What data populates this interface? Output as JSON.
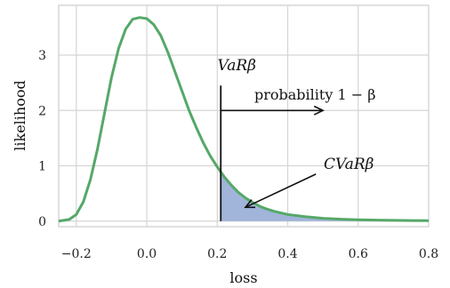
{
  "chart_data": {
    "type": "line",
    "title": "",
    "xlabel": "loss",
    "ylabel": "likelihood",
    "xlim": [
      -0.25,
      0.8
    ],
    "ylim": [
      -0.1,
      3.9
    ],
    "grid": true,
    "legend": "none",
    "x_ticks": [
      -0.2,
      0.0,
      0.2,
      0.4,
      0.6,
      0.8
    ],
    "x_tick_labels": [
      "−0.2",
      "0.0",
      "0.2",
      "0.4",
      "0.6",
      "0.8"
    ],
    "y_ticks": [
      0,
      1,
      2,
      3
    ],
    "y_tick_labels": [
      "0",
      "1",
      "2",
      "3"
    ],
    "series": [
      {
        "line_color": "#55a868",
        "x": [
          -0.25,
          -0.22,
          -0.2,
          -0.18,
          -0.16,
          -0.14,
          -0.12,
          -0.1,
          -0.08,
          -0.06,
          -0.04,
          -0.02,
          0.0,
          0.02,
          0.04,
          0.06,
          0.08,
          0.1,
          0.12,
          0.14,
          0.16,
          0.18,
          0.2,
          0.22,
          0.24,
          0.26,
          0.28,
          0.3,
          0.32,
          0.34,
          0.36,
          0.38,
          0.4,
          0.45,
          0.5,
          0.55,
          0.6,
          0.65,
          0.7,
          0.75,
          0.8
        ],
        "y": [
          0.0,
          0.03,
          0.12,
          0.35,
          0.75,
          1.3,
          1.95,
          2.6,
          3.12,
          3.47,
          3.65,
          3.68,
          3.66,
          3.55,
          3.35,
          3.05,
          2.7,
          2.35,
          2.0,
          1.7,
          1.42,
          1.18,
          0.98,
          0.8,
          0.65,
          0.52,
          0.42,
          0.34,
          0.27,
          0.22,
          0.18,
          0.15,
          0.12,
          0.08,
          0.05,
          0.035,
          0.025,
          0.018,
          0.014,
          0.011,
          0.009
        ]
      }
    ],
    "shaded_region": {
      "x_from": 0.21,
      "x_to": 0.8,
      "color": "#a1b4d9"
    },
    "annotations": {
      "var_label": "VaRβ",
      "var_x": 0.21,
      "var_line_top": 2.45,
      "probability_label": "probability 1 − β",
      "probability_arrow": {
        "from": [
          0.21,
          2.0
        ],
        "to": [
          0.5,
          2.0
        ]
      },
      "cvar_label": "CVaRβ",
      "cvar_arrow": {
        "from": [
          0.48,
          0.85
        ],
        "to": [
          0.28,
          0.25
        ]
      }
    }
  }
}
